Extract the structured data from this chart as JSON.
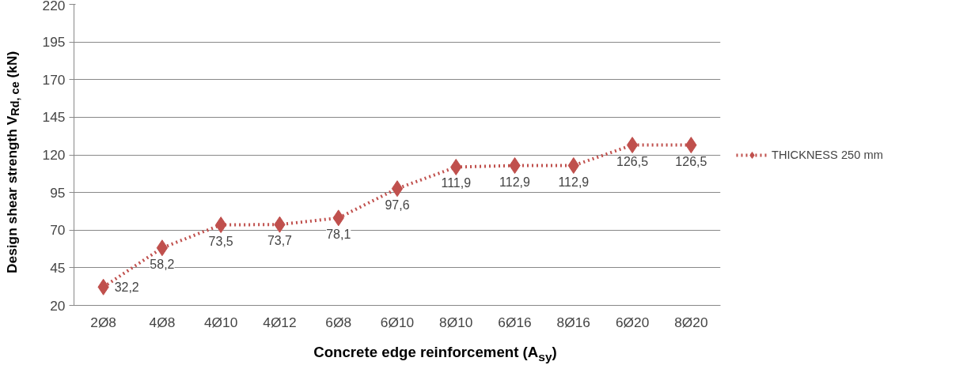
{
  "chart_data": {
    "type": "line",
    "xlabel": "Concrete edge reinforcement (A$_{sy}$)",
    "ylabel": "Design shear strength V$_{Rd, ce}$ (kN)",
    "categories": [
      "2Ø8",
      "4Ø8",
      "4Ø10",
      "4Ø12",
      "6Ø8",
      "6Ø10",
      "8Ø10",
      "6Ø16",
      "8Ø16",
      "6Ø20",
      "8Ø20"
    ],
    "series": [
      {
        "name": "THICKNESS 250 mm",
        "color": "#c0504d",
        "values": [
          32.2,
          58.2,
          73.5,
          73.7,
          78.1,
          97.6,
          111.9,
          112.9,
          112.9,
          126.5,
          126.5
        ],
        "value_labels": [
          "32,2",
          "58,2",
          "73,5",
          "73,7",
          "78,1",
          "97,6",
          "111,9",
          "112,9",
          "112,9",
          "126,5",
          "126,5"
        ]
      }
    ],
    "ylim": [
      20,
      220
    ],
    "yticks": [
      20,
      45,
      70,
      95,
      120,
      145,
      170,
      195,
      220
    ],
    "grid": "y",
    "legend": "right",
    "marker": "diamond",
    "line_style": "dotted"
  }
}
